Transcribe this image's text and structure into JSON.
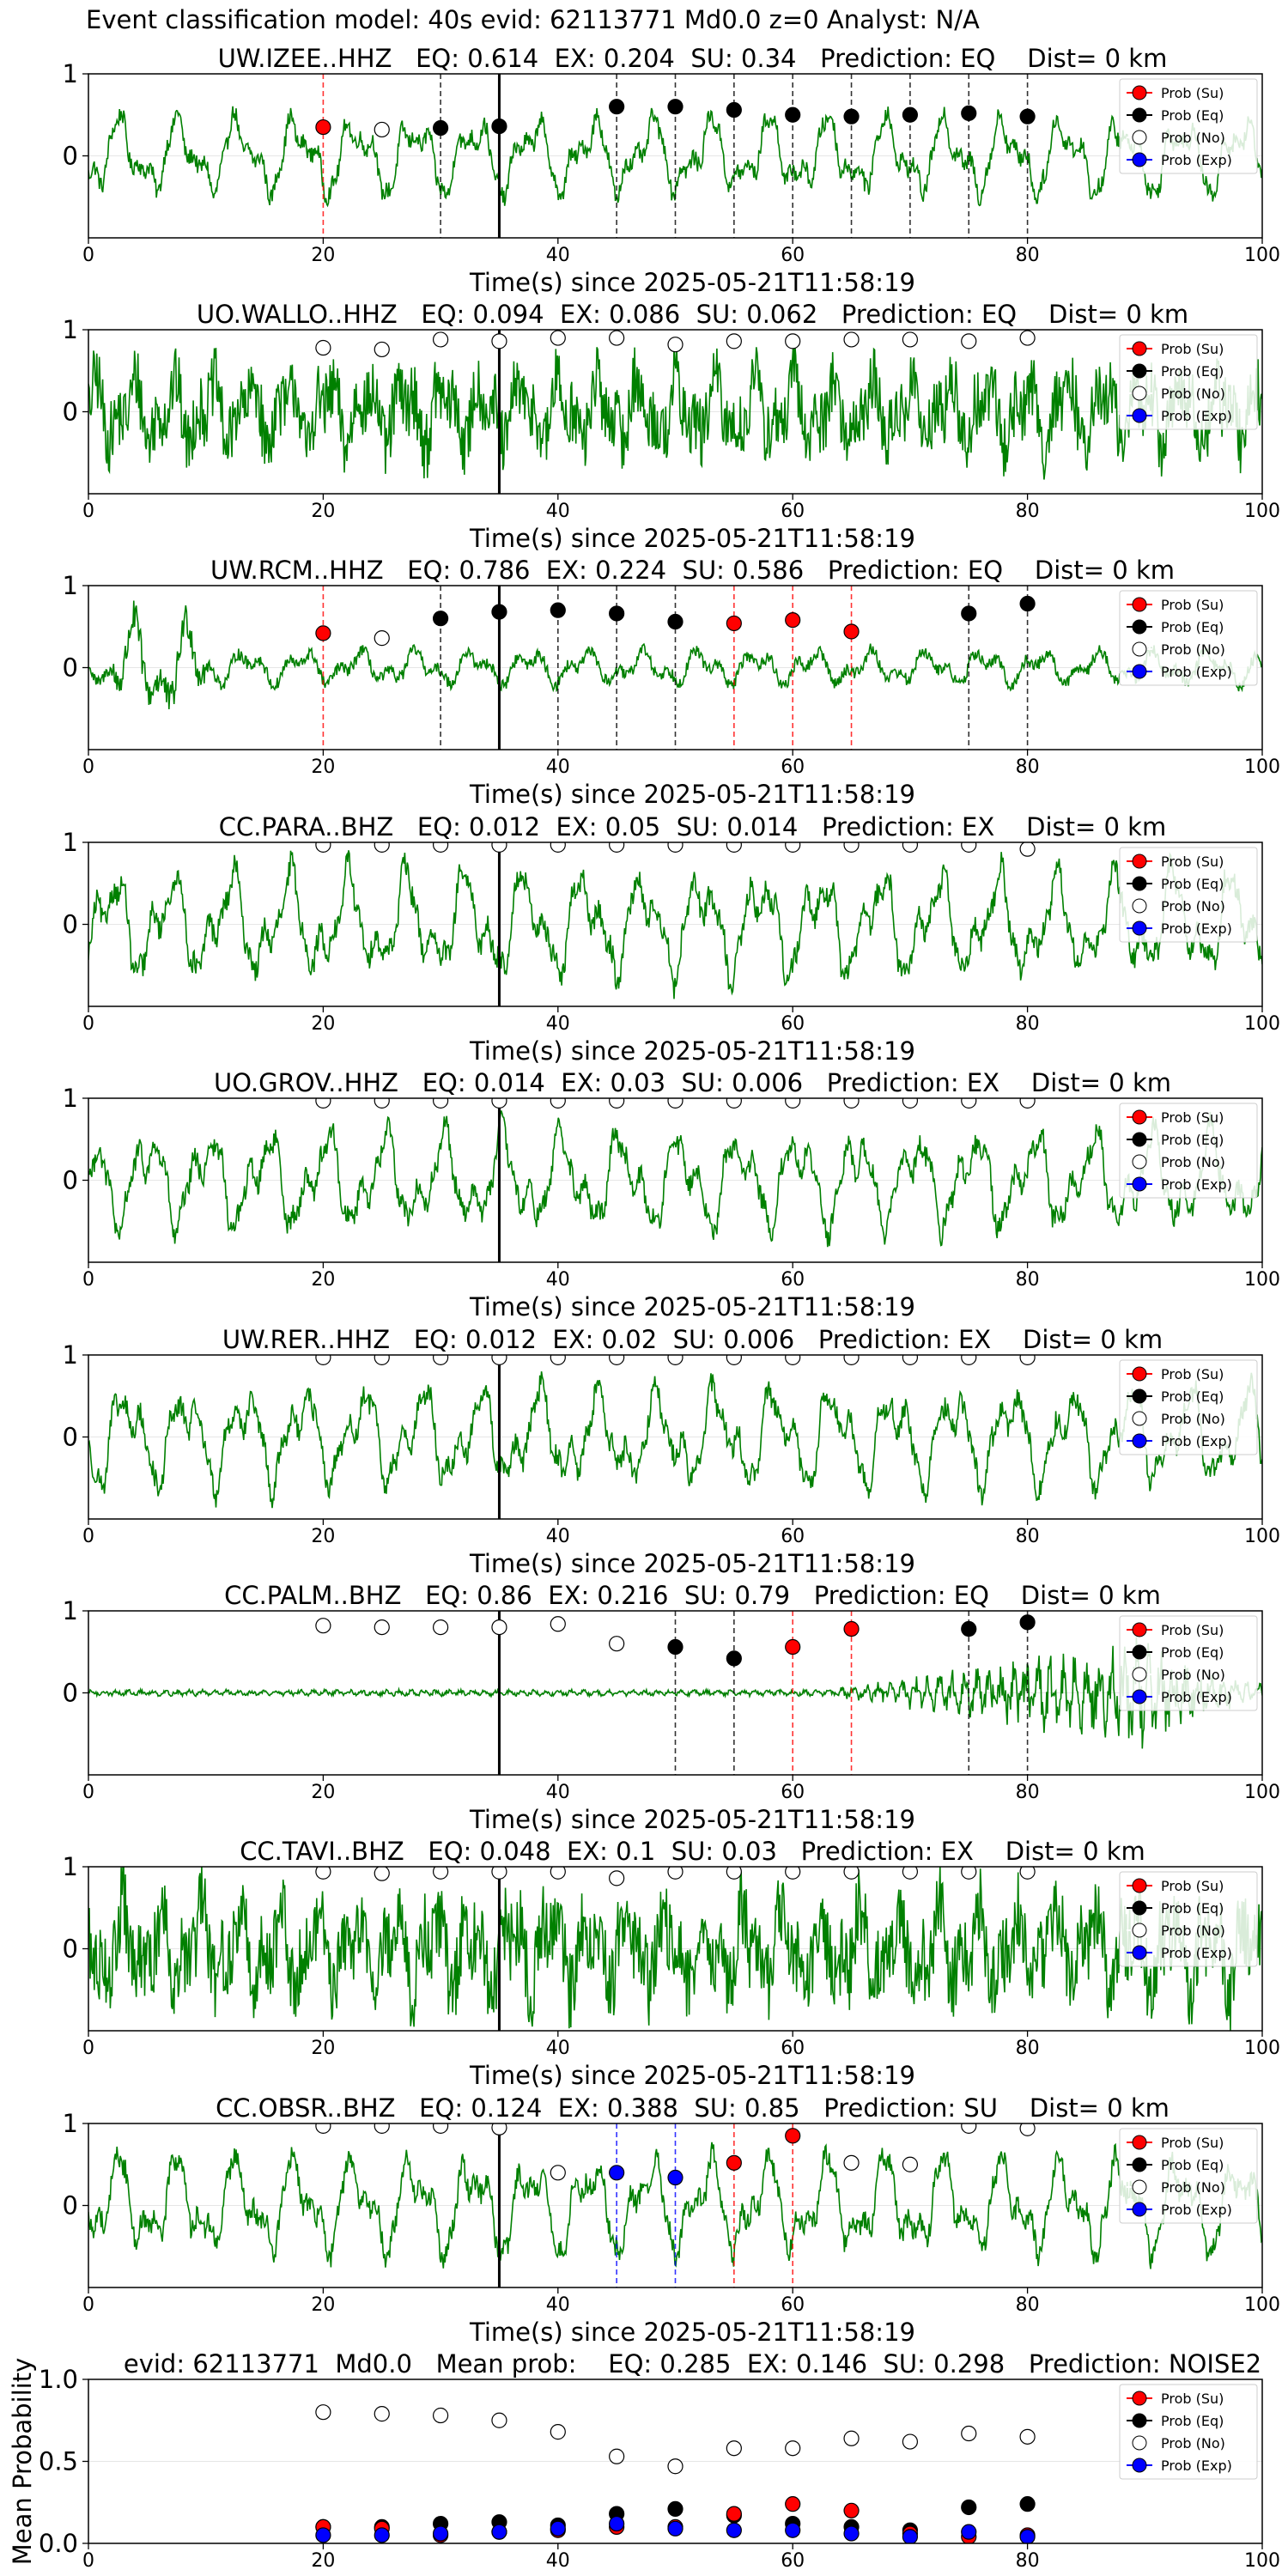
{
  "figure": {
    "suptitle": "Event classification model: 40s evid: 62113771 Md0.0 z=0 Analyst: N/A",
    "colors": {
      "waveform": "#008000",
      "su": "#ff0000",
      "eq": "#000000",
      "no": "#ffffff",
      "exp": "#0000ff",
      "vline_center": "#000000"
    }
  },
  "chart_data": [
    {
      "type": "line",
      "title": "UW.IZEE..HHZ   EQ: 0.614  EX: 0.204  SU: 0.34   Prediction: EQ    Dist= 0 km",
      "xlabel": "Time(s) since 2025-05-21T11:58:19",
      "xlim": [
        0,
        100
      ],
      "ylim": [
        -1,
        1
      ],
      "xticks": [
        0,
        20,
        40,
        60,
        80,
        100
      ],
      "yticks": [
        0,
        1
      ],
      "center_line_x": 35,
      "waveform": {
        "amplitude": 0.6,
        "character": "low-frequency"
      },
      "legend": [
        "Prob (Su)",
        "Prob (Eq)",
        "Prob (No)",
        "Prob (Exp)"
      ],
      "points": [
        {
          "x": 20,
          "y": 0.35,
          "cls": "su"
        },
        {
          "x": 25,
          "y": 0.32,
          "cls": "no"
        },
        {
          "x": 30,
          "y": 0.34,
          "cls": "eq"
        },
        {
          "x": 35,
          "y": 0.36,
          "cls": "eq"
        },
        {
          "x": 45,
          "y": 0.6,
          "cls": "eq"
        },
        {
          "x": 50,
          "y": 0.6,
          "cls": "eq"
        },
        {
          "x": 55,
          "y": 0.56,
          "cls": "eq"
        },
        {
          "x": 60,
          "y": 0.5,
          "cls": "eq"
        },
        {
          "x": 65,
          "y": 0.48,
          "cls": "eq"
        },
        {
          "x": 70,
          "y": 0.5,
          "cls": "eq"
        },
        {
          "x": 75,
          "y": 0.52,
          "cls": "eq"
        },
        {
          "x": 80,
          "y": 0.48,
          "cls": "eq"
        }
      ]
    },
    {
      "type": "line",
      "title": "UO.WALLO..HHZ   EQ: 0.094  EX: 0.086  SU: 0.062   Prediction: EQ    Dist= 0 km",
      "xlabel": "Time(s) since 2025-05-21T11:58:19",
      "xlim": [
        0,
        100
      ],
      "ylim": [
        -1,
        1
      ],
      "xticks": [
        0,
        20,
        40,
        60,
        80,
        100
      ],
      "yticks": [
        0,
        1
      ],
      "center_line_x": 35,
      "waveform": {
        "amplitude": 0.75,
        "character": "noisy"
      },
      "legend": [
        "Prob (Su)",
        "Prob (Eq)",
        "Prob (No)",
        "Prob (Exp)"
      ],
      "points": [
        {
          "x": 20,
          "y": 0.78,
          "cls": "no"
        },
        {
          "x": 25,
          "y": 0.76,
          "cls": "no"
        },
        {
          "x": 30,
          "y": 0.88,
          "cls": "no"
        },
        {
          "x": 35,
          "y": 0.86,
          "cls": "no"
        },
        {
          "x": 40,
          "y": 0.9,
          "cls": "no"
        },
        {
          "x": 45,
          "y": 0.9,
          "cls": "no"
        },
        {
          "x": 50,
          "y": 0.82,
          "cls": "no"
        },
        {
          "x": 55,
          "y": 0.86,
          "cls": "no"
        },
        {
          "x": 60,
          "y": 0.86,
          "cls": "no"
        },
        {
          "x": 65,
          "y": 0.88,
          "cls": "no"
        },
        {
          "x": 70,
          "y": 0.88,
          "cls": "no"
        },
        {
          "x": 75,
          "y": 0.86,
          "cls": "no"
        },
        {
          "x": 80,
          "y": 0.9,
          "cls": "no"
        }
      ]
    },
    {
      "type": "line",
      "title": "UW.RCM..HHZ   EQ: 0.786  EX: 0.224  SU: 0.586   Prediction: EQ    Dist= 0 km",
      "xlabel": "Time(s) since 2025-05-21T11:58:19",
      "xlim": [
        0,
        100
      ],
      "ylim": [
        -1,
        1
      ],
      "xticks": [
        0,
        20,
        40,
        60,
        80,
        100
      ],
      "yticks": [
        0,
        1
      ],
      "center_line_x": 35,
      "waveform": {
        "amplitude": 0.55,
        "character": "burst-early"
      },
      "legend": [
        "Prob (Su)",
        "Prob (Eq)",
        "Prob (No)",
        "Prob (Exp)"
      ],
      "points": [
        {
          "x": 20,
          "y": 0.42,
          "cls": "su"
        },
        {
          "x": 25,
          "y": 0.36,
          "cls": "no"
        },
        {
          "x": 30,
          "y": 0.6,
          "cls": "eq"
        },
        {
          "x": 35,
          "y": 0.68,
          "cls": "eq"
        },
        {
          "x": 40,
          "y": 0.7,
          "cls": "eq"
        },
        {
          "x": 45,
          "y": 0.66,
          "cls": "eq"
        },
        {
          "x": 50,
          "y": 0.56,
          "cls": "eq"
        },
        {
          "x": 55,
          "y": 0.54,
          "cls": "su"
        },
        {
          "x": 60,
          "y": 0.58,
          "cls": "su"
        },
        {
          "x": 65,
          "y": 0.44,
          "cls": "su"
        },
        {
          "x": 75,
          "y": 0.66,
          "cls": "eq"
        },
        {
          "x": 80,
          "y": 0.78,
          "cls": "eq"
        }
      ]
    },
    {
      "type": "line",
      "title": "CC.PARA..BHZ   EQ: 0.012  EX: 0.05  SU: 0.014   Prediction: EX    Dist= 0 km",
      "xlabel": "Time(s) since 2025-05-21T11:58:19",
      "xlim": [
        0,
        100
      ],
      "ylim": [
        -1,
        1
      ],
      "xticks": [
        0,
        20,
        40,
        60,
        80,
        100
      ],
      "yticks": [
        0,
        1
      ],
      "center_line_x": 35,
      "waveform": {
        "amplitude": 0.8,
        "character": "low-frequency"
      },
      "legend": [
        "Prob (Su)",
        "Prob (Eq)",
        "Prob (No)",
        "Prob (Exp)"
      ],
      "points": [
        {
          "x": 20,
          "y": 0.97,
          "cls": "no"
        },
        {
          "x": 25,
          "y": 0.97,
          "cls": "no"
        },
        {
          "x": 30,
          "y": 0.97,
          "cls": "no"
        },
        {
          "x": 35,
          "y": 0.97,
          "cls": "no"
        },
        {
          "x": 40,
          "y": 0.97,
          "cls": "no"
        },
        {
          "x": 45,
          "y": 0.97,
          "cls": "no"
        },
        {
          "x": 50,
          "y": 0.97,
          "cls": "no"
        },
        {
          "x": 55,
          "y": 0.97,
          "cls": "no"
        },
        {
          "x": 60,
          "y": 0.97,
          "cls": "no"
        },
        {
          "x": 65,
          "y": 0.97,
          "cls": "no"
        },
        {
          "x": 70,
          "y": 0.97,
          "cls": "no"
        },
        {
          "x": 75,
          "y": 0.97,
          "cls": "no"
        },
        {
          "x": 80,
          "y": 0.92,
          "cls": "no"
        }
      ]
    },
    {
      "type": "line",
      "title": "UO.GROV..HHZ   EQ: 0.014  EX: 0.03  SU: 0.006   Prediction: EX    Dist= 0 km",
      "xlabel": "Time(s) since 2025-05-21T11:58:19",
      "xlim": [
        0,
        100
      ],
      "ylim": [
        -1,
        1
      ],
      "xticks": [
        0,
        20,
        40,
        60,
        80,
        100
      ],
      "yticks": [
        0,
        1
      ],
      "center_line_x": 35,
      "waveform": {
        "amplitude": 0.75,
        "character": "low-frequency"
      },
      "legend": [
        "Prob (Su)",
        "Prob (Eq)",
        "Prob (No)",
        "Prob (Exp)"
      ],
      "points": [
        {
          "x": 20,
          "y": 0.97,
          "cls": "no"
        },
        {
          "x": 25,
          "y": 0.97,
          "cls": "no"
        },
        {
          "x": 30,
          "y": 0.97,
          "cls": "no"
        },
        {
          "x": 35,
          "y": 0.97,
          "cls": "no"
        },
        {
          "x": 40,
          "y": 0.97,
          "cls": "no"
        },
        {
          "x": 45,
          "y": 0.97,
          "cls": "no"
        },
        {
          "x": 50,
          "y": 0.97,
          "cls": "no"
        },
        {
          "x": 55,
          "y": 0.97,
          "cls": "no"
        },
        {
          "x": 60,
          "y": 0.97,
          "cls": "no"
        },
        {
          "x": 65,
          "y": 0.97,
          "cls": "no"
        },
        {
          "x": 70,
          "y": 0.97,
          "cls": "no"
        },
        {
          "x": 75,
          "y": 0.97,
          "cls": "no"
        },
        {
          "x": 80,
          "y": 0.97,
          "cls": "no"
        }
      ]
    },
    {
      "type": "line",
      "title": "UW.RER..HHZ   EQ: 0.012  EX: 0.02  SU: 0.006   Prediction: EX    Dist= 0 km",
      "xlabel": "Time(s) since 2025-05-21T11:58:19",
      "xlim": [
        0,
        100
      ],
      "ylim": [
        -1,
        1
      ],
      "xticks": [
        0,
        20,
        40,
        60,
        80,
        100
      ],
      "yticks": [
        0,
        1
      ],
      "center_line_x": 35,
      "waveform": {
        "amplitude": 0.75,
        "character": "low-frequency"
      },
      "legend": [
        "Prob (Su)",
        "Prob (Eq)",
        "Prob (No)",
        "Prob (Exp)"
      ],
      "points": [
        {
          "x": 20,
          "y": 0.97,
          "cls": "no"
        },
        {
          "x": 25,
          "y": 0.97,
          "cls": "no"
        },
        {
          "x": 30,
          "y": 0.97,
          "cls": "no"
        },
        {
          "x": 35,
          "y": 0.97,
          "cls": "no"
        },
        {
          "x": 40,
          "y": 0.97,
          "cls": "no"
        },
        {
          "x": 45,
          "y": 0.97,
          "cls": "no"
        },
        {
          "x": 50,
          "y": 0.97,
          "cls": "no"
        },
        {
          "x": 55,
          "y": 0.97,
          "cls": "no"
        },
        {
          "x": 60,
          "y": 0.97,
          "cls": "no"
        },
        {
          "x": 65,
          "y": 0.97,
          "cls": "no"
        },
        {
          "x": 70,
          "y": 0.97,
          "cls": "no"
        },
        {
          "x": 75,
          "y": 0.97,
          "cls": "no"
        },
        {
          "x": 80,
          "y": 0.97,
          "cls": "no"
        }
      ]
    },
    {
      "type": "line",
      "title": "CC.PALM..BHZ   EQ: 0.86  EX: 0.216  SU: 0.79   Prediction: EQ    Dist= 0 km",
      "xlabel": "Time(s) since 2025-05-21T11:58:19",
      "xlim": [
        0,
        100
      ],
      "ylim": [
        -1,
        1
      ],
      "xticks": [
        0,
        20,
        40,
        60,
        80,
        100
      ],
      "yticks": [
        0,
        1
      ],
      "center_line_x": 35,
      "waveform": {
        "amplitude": 0.7,
        "character": "quiet-then-growing"
      },
      "legend": [
        "Prob (Su)",
        "Prob (Eq)",
        "Prob (No)",
        "Prob (Exp)"
      ],
      "points": [
        {
          "x": 20,
          "y": 0.82,
          "cls": "no"
        },
        {
          "x": 25,
          "y": 0.8,
          "cls": "no"
        },
        {
          "x": 30,
          "y": 0.8,
          "cls": "no"
        },
        {
          "x": 35,
          "y": 0.8,
          "cls": "no"
        },
        {
          "x": 40,
          "y": 0.84,
          "cls": "no"
        },
        {
          "x": 45,
          "y": 0.6,
          "cls": "no"
        },
        {
          "x": 50,
          "y": 0.56,
          "cls": "eq"
        },
        {
          "x": 55,
          "y": 0.42,
          "cls": "eq"
        },
        {
          "x": 60,
          "y": 0.56,
          "cls": "su"
        },
        {
          "x": 65,
          "y": 0.78,
          "cls": "su"
        },
        {
          "x": 75,
          "y": 0.78,
          "cls": "eq"
        },
        {
          "x": 80,
          "y": 0.86,
          "cls": "eq"
        }
      ]
    },
    {
      "type": "line",
      "title": "CC.TAVI..BHZ   EQ: 0.048  EX: 0.1  SU: 0.03   Prediction: EX    Dist= 0 km",
      "xlabel": "Time(s) since 2025-05-21T11:58:19",
      "xlim": [
        0,
        100
      ],
      "ylim": [
        -1,
        1
      ],
      "xticks": [
        0,
        20,
        40,
        60,
        80,
        100
      ],
      "yticks": [
        0,
        1
      ],
      "center_line_x": 35,
      "waveform": {
        "amplitude": 0.9,
        "character": "noisy"
      },
      "legend": [
        "Prob (Su)",
        "Prob (Eq)",
        "Prob (No)",
        "Prob (Exp)"
      ],
      "points": [
        {
          "x": 20,
          "y": 0.94,
          "cls": "no"
        },
        {
          "x": 25,
          "y": 0.92,
          "cls": "no"
        },
        {
          "x": 30,
          "y": 0.94,
          "cls": "no"
        },
        {
          "x": 35,
          "y": 0.94,
          "cls": "no"
        },
        {
          "x": 40,
          "y": 0.94,
          "cls": "no"
        },
        {
          "x": 45,
          "y": 0.86,
          "cls": "no"
        },
        {
          "x": 50,
          "y": 0.94,
          "cls": "no"
        },
        {
          "x": 55,
          "y": 0.94,
          "cls": "no"
        },
        {
          "x": 60,
          "y": 0.94,
          "cls": "no"
        },
        {
          "x": 65,
          "y": 0.94,
          "cls": "no"
        },
        {
          "x": 70,
          "y": 0.94,
          "cls": "no"
        },
        {
          "x": 75,
          "y": 0.94,
          "cls": "no"
        },
        {
          "x": 80,
          "y": 0.94,
          "cls": "no"
        }
      ]
    },
    {
      "type": "line",
      "title": "CC.OBSR..BHZ   EQ: 0.124  EX: 0.388  SU: 0.85   Prediction: SU    Dist= 0 km",
      "xlabel": "Time(s) since 2025-05-21T11:58:19",
      "xlim": [
        0,
        100
      ],
      "ylim": [
        -1,
        1
      ],
      "xticks": [
        0,
        20,
        40,
        60,
        80,
        100
      ],
      "yticks": [
        0,
        1
      ],
      "center_line_x": 35,
      "waveform": {
        "amplitude": 0.75,
        "character": "low-frequency"
      },
      "legend": [
        "Prob (Su)",
        "Prob (Eq)",
        "Prob (No)",
        "Prob (Exp)"
      ],
      "points": [
        {
          "x": 20,
          "y": 0.97,
          "cls": "no"
        },
        {
          "x": 25,
          "y": 0.97,
          "cls": "no"
        },
        {
          "x": 30,
          "y": 0.97,
          "cls": "no"
        },
        {
          "x": 35,
          "y": 0.95,
          "cls": "no"
        },
        {
          "x": 40,
          "y": 0.4,
          "cls": "no"
        },
        {
          "x": 45,
          "y": 0.4,
          "cls": "exp"
        },
        {
          "x": 50,
          "y": 0.34,
          "cls": "exp"
        },
        {
          "x": 55,
          "y": 0.52,
          "cls": "su"
        },
        {
          "x": 60,
          "y": 0.85,
          "cls": "su"
        },
        {
          "x": 65,
          "y": 0.52,
          "cls": "no"
        },
        {
          "x": 70,
          "y": 0.5,
          "cls": "no"
        },
        {
          "x": 75,
          "y": 0.97,
          "cls": "no"
        },
        {
          "x": 80,
          "y": 0.94,
          "cls": "no"
        }
      ]
    },
    {
      "type": "scatter",
      "title": "evid: 62113771  Md0.0   Mean prob:    EQ: 0.285  EX: 0.146  SU: 0.298   Prediction: NOISE2",
      "ylabel": "Mean Probability",
      "xlim": [
        0,
        100
      ],
      "ylim": [
        0,
        1
      ],
      "xticks": [
        0,
        20,
        40,
        60,
        80,
        100
      ],
      "yticks": [
        0.0,
        0.5,
        1.0
      ],
      "ytick_labels": [
        "0.0",
        "0.5",
        "1.0"
      ],
      "legend": [
        "Prob (Su)",
        "Prob (Eq)",
        "Prob (No)",
        "Prob (Exp)"
      ],
      "x": [
        20,
        25,
        30,
        35,
        40,
        45,
        50,
        55,
        60,
        65,
        70,
        75,
        80
      ],
      "series": [
        {
          "name": "Prob (No)",
          "cls": "no",
          "values": [
            0.8,
            0.79,
            0.78,
            0.75,
            0.68,
            0.53,
            0.47,
            0.58,
            0.58,
            0.64,
            0.62,
            0.67,
            0.65
          ]
        },
        {
          "name": "Prob (Eq)",
          "cls": "eq",
          "values": [
            0.1,
            0.1,
            0.12,
            0.13,
            0.11,
            0.18,
            0.21,
            0.17,
            0.12,
            0.1,
            0.08,
            0.22,
            0.24
          ]
        },
        {
          "name": "Prob (Su)",
          "cls": "su",
          "values": [
            0.1,
            0.09,
            0.05,
            0.07,
            0.08,
            0.1,
            0.1,
            0.18,
            0.24,
            0.2,
            0.06,
            0.04,
            0.05
          ]
        },
        {
          "name": "Prob (Exp)",
          "cls": "exp",
          "values": [
            0.05,
            0.05,
            0.06,
            0.07,
            0.09,
            0.12,
            0.09,
            0.08,
            0.08,
            0.06,
            0.04,
            0.07,
            0.04
          ]
        }
      ]
    }
  ]
}
